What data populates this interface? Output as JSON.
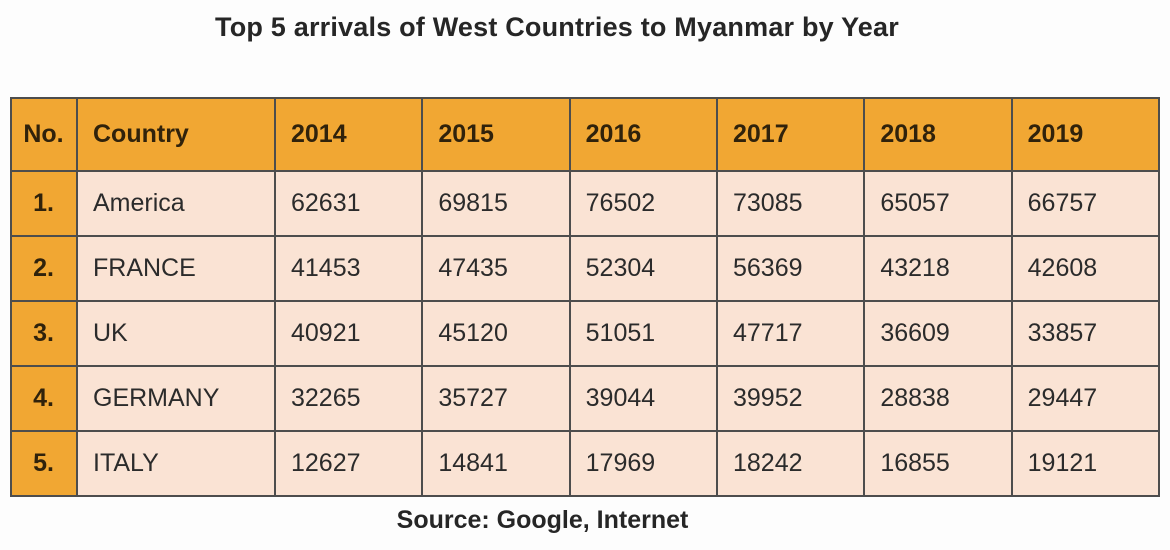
{
  "title": "Top 5 arrivals of West Countries to Myanmar by Year",
  "source": "Source: Google, Internet",
  "colors": {
    "header_bg": "#f1a733",
    "row_bg": "#fae3d4",
    "border": "#4d4d4d",
    "text": "#262626"
  },
  "chart_data": {
    "type": "table",
    "title": "Top 5 arrivals of West Countries to Myanmar by Year",
    "columns": [
      "No.",
      "Country",
      "2014",
      "2015",
      "2016",
      "2017",
      "2018",
      "2019"
    ],
    "rows": [
      [
        "1.",
        "America",
        "62631",
        "69815",
        "76502",
        "73085",
        "65057",
        "66757"
      ],
      [
        "2.",
        "FRANCE",
        "41453",
        "47435",
        "52304",
        "56369",
        "43218",
        "42608"
      ],
      [
        "3.",
        "UK",
        "40921",
        "45120",
        "51051",
        "47717",
        "36609",
        "33857"
      ],
      [
        "4.",
        "GERMANY",
        "32265",
        "35727",
        "39044",
        "39952",
        "28838",
        "29447"
      ],
      [
        "5.",
        "ITALY",
        "12627",
        "14841",
        "17969",
        "18242",
        "16855",
        "19121"
      ]
    ],
    "source": "Source: Google, Internet"
  }
}
